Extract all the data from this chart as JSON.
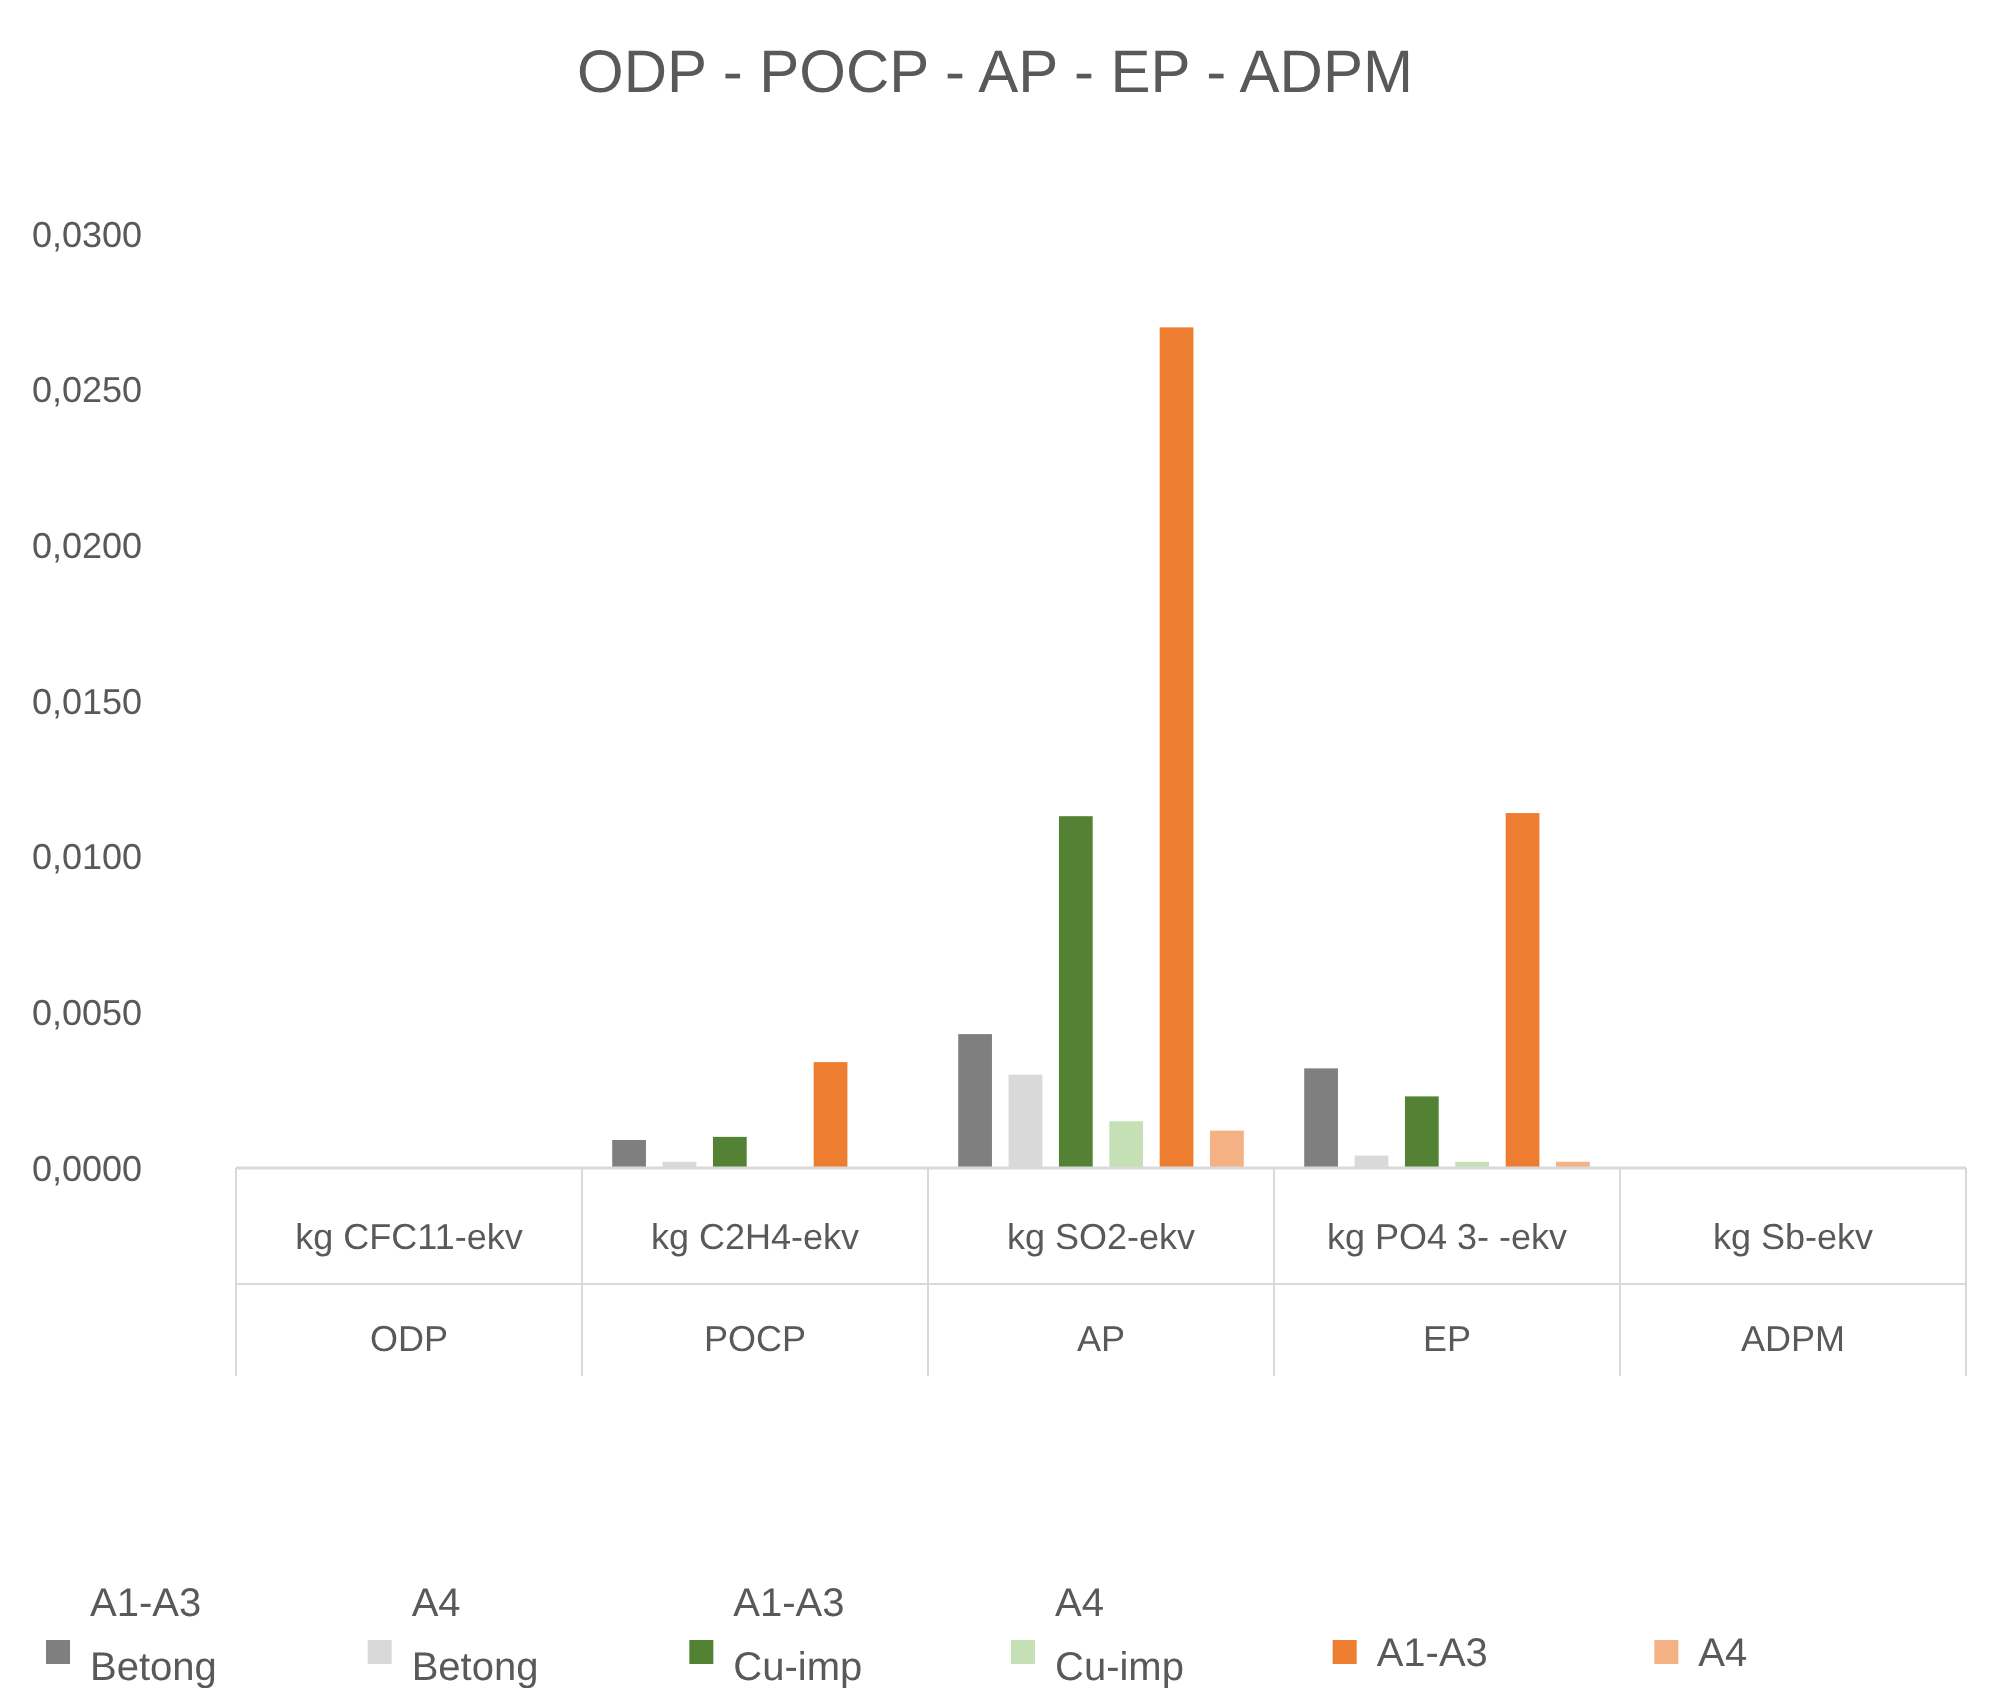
{
  "chart_data": {
    "type": "bar",
    "title": "ODP - POCP - AP - EP - ADPM",
    "categories": [
      "kg CFC11-ekv",
      "kg C2H4-ekv",
      "kg SO2-ekv",
      "kg PO4 3- -ekv",
      "kg Sb-ekv"
    ],
    "series": [
      {
        "name": "A1-A3 Betong",
        "color": "#7f7f7f",
        "values": [
          0,
          0.0009,
          0.0043,
          0.0032,
          0
        ]
      },
      {
        "name": "A4 Betong",
        "color": "#d9d9d9",
        "values": [
          0,
          0.0002,
          0.003,
          0.0004,
          0
        ]
      },
      {
        "name": "A1-A3 Cu-imp",
        "color": "#548235",
        "values": [
          0,
          0.001,
          0.0113,
          0.0023,
          0
        ]
      },
      {
        "name": "A4 Cu-imp",
        "color": "#c5e0b4",
        "values": [
          0,
          0,
          0.0015,
          0.0002,
          0
        ]
      },
      {
        "name": "A1-A3",
        "color": "#ed7d31",
        "values": [
          0,
          0.0034,
          0.027,
          0.0114,
          0
        ]
      },
      {
        "name": "A4",
        "color": "#f4b183",
        "values": [
          0,
          0,
          0.0012,
          0.0002,
          0
        ]
      }
    ],
    "ylim": [
      0,
      0.03
    ],
    "yticks": [
      {
        "value": 0,
        "label": "0,0000"
      },
      {
        "value": 0.005,
        "label": "0,0050"
      },
      {
        "value": 0.01,
        "label": "0,0100"
      },
      {
        "value": 0.015,
        "label": "0,0150"
      },
      {
        "value": 0.02,
        "label": "0,0200"
      },
      {
        "value": 0.025,
        "label": "0,0250"
      },
      {
        "value": 0.03,
        "label": "0,0300"
      }
    ],
    "annotations": [
      "ODP",
      "POCP",
      "AP",
      "EP",
      "ADPM"
    ],
    "legend": "bottom",
    "grid": false
  }
}
